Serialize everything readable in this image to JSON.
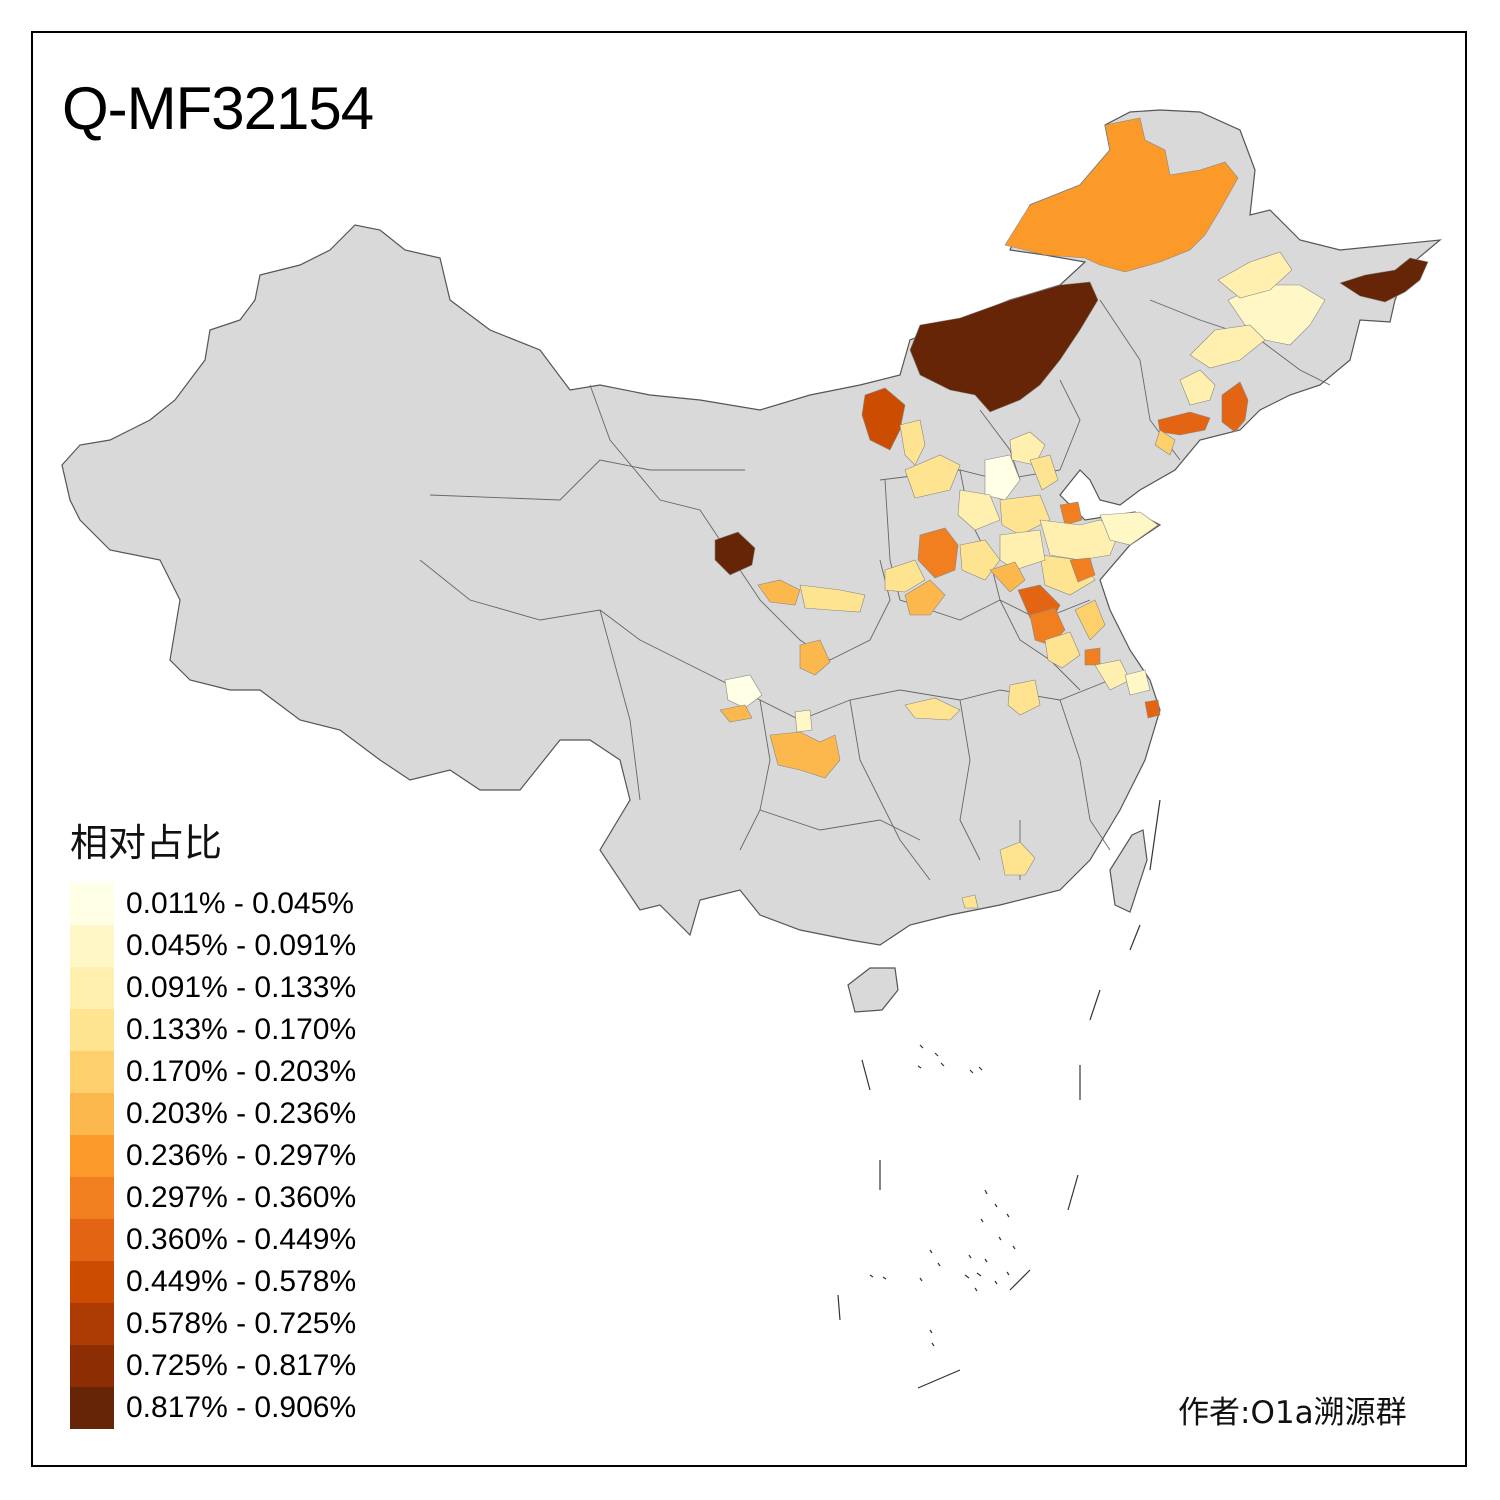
{
  "title": "Q-MF32154",
  "author": "作者:O1a溯源群",
  "colors": {
    "base": "#d9d9d9",
    "border": "#555555"
  },
  "legend": {
    "title": "相对占比",
    "items": [
      {
        "label": "0.011% - 0.045%",
        "color": "#ffffe5"
      },
      {
        "label": "0.045% - 0.091%",
        "color": "#fff7c6"
      },
      {
        "label": "0.091% - 0.133%",
        "color": "#fff0b0"
      },
      {
        "label": "0.133% - 0.170%",
        "color": "#fee391"
      },
      {
        "label": "0.170% - 0.203%",
        "color": "#fed06c"
      },
      {
        "label": "0.203% - 0.236%",
        "color": "#fdb84d"
      },
      {
        "label": "0.236% - 0.297%",
        "color": "#fb9a29"
      },
      {
        "label": "0.297% - 0.360%",
        "color": "#f17f20"
      },
      {
        "label": "0.360% - 0.449%",
        "color": "#e36514"
      },
      {
        "label": "0.449% - 0.578%",
        "color": "#cc4c02"
      },
      {
        "label": "0.578% - 0.725%",
        "color": "#ad3c04"
      },
      {
        "label": "0.725% - 0.817%",
        "color": "#8c2d04"
      },
      {
        "label": "0.817% - 0.906%",
        "color": "#662506"
      }
    ]
  }
}
